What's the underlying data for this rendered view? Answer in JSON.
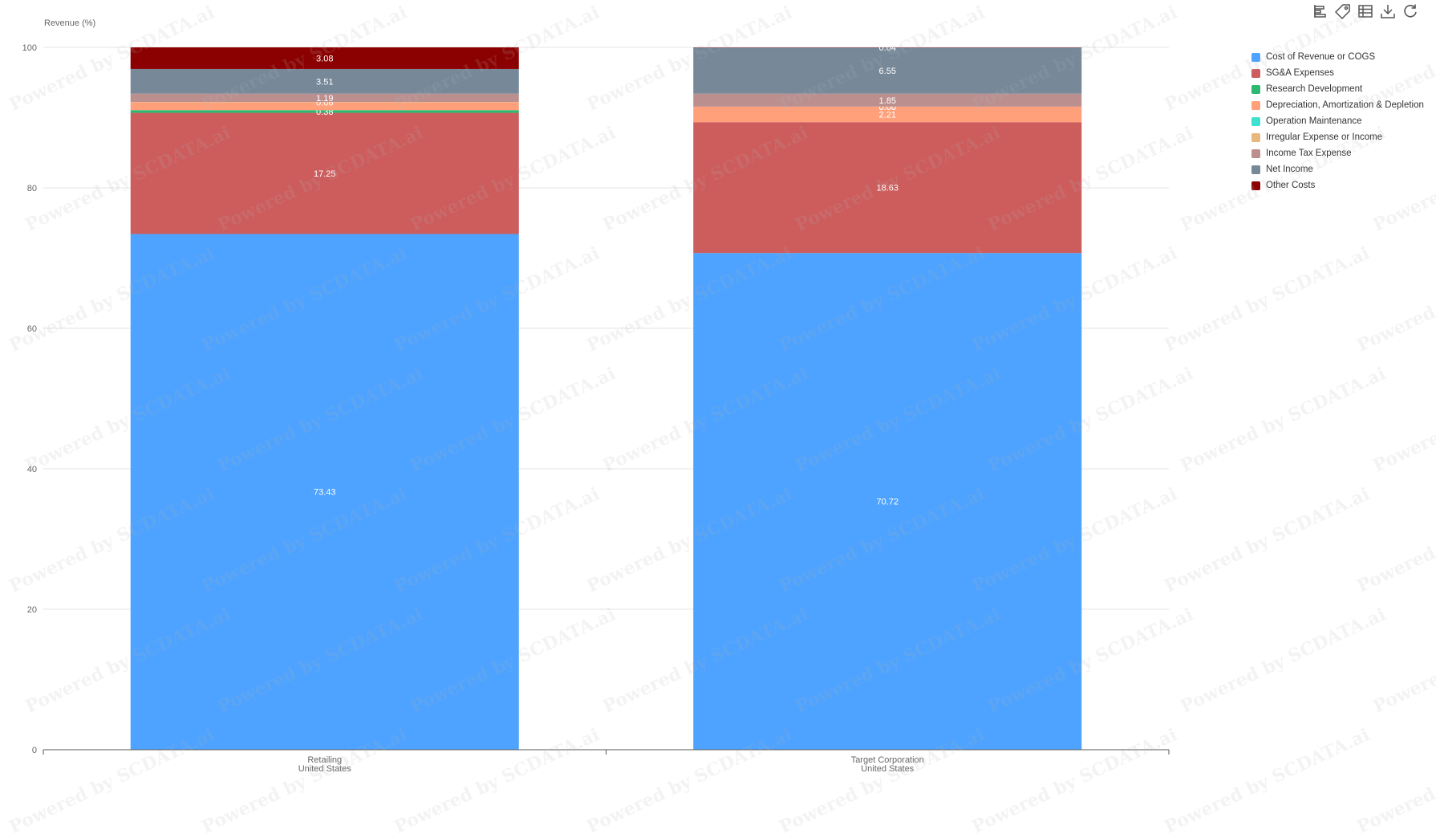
{
  "toolbar": {
    "icons": [
      "bar-chart-icon",
      "tag-icon",
      "table-icon",
      "download-icon",
      "refresh-icon"
    ]
  },
  "watermark_text": "Powered by SCDATA.ai",
  "chart_data": {
    "type": "bar",
    "stacked": true,
    "ylabel": "Revenue (%)",
    "ylim": [
      0,
      100
    ],
    "yticks": [
      0,
      20,
      40,
      60,
      80,
      100
    ],
    "categories": [
      [
        "Retailing",
        "United States"
      ],
      [
        "Target Corporation",
        "United States"
      ]
    ],
    "grid": true,
    "legend_position": "top-right",
    "series": [
      {
        "name": "Cost of Revenue or COGS",
        "color": "#4da3ff",
        "values": [
          73.43,
          70.72
        ],
        "labels": [
          "73.43",
          "70.72"
        ]
      },
      {
        "name": "SG&A Expenses",
        "color": "#cd5c5c",
        "values": [
          17.25,
          18.63
        ],
        "labels": [
          "17.25",
          "18.63"
        ]
      },
      {
        "name": "Research Development",
        "color": "#2eb872",
        "values": [
          0.38,
          0.0
        ],
        "labels": [
          "0.38",
          ""
        ]
      },
      {
        "name": "Depreciation, Amortization & Depletion",
        "color": "#ffa07a",
        "values": [
          1.1,
          2.21
        ],
        "labels": [
          "",
          "2.21"
        ]
      },
      {
        "name": "Operation Maintenance",
        "color": "#40e0d0",
        "values": [
          0.0,
          0.0
        ],
        "labels": [
          "",
          "0.00"
        ]
      },
      {
        "name": "Irregular Expense or Income",
        "color": "#e6b87d",
        "values": [
          0.06,
          0.0
        ],
        "labels": [
          "0.06",
          "0.00"
        ]
      },
      {
        "name": "Income Tax Expense",
        "color": "#bc8f8f",
        "values": [
          1.19,
          1.85
        ],
        "labels": [
          "1.19",
          "1.85"
        ]
      },
      {
        "name": "Net Income",
        "color": "#778899",
        "values": [
          3.51,
          6.55
        ],
        "labels": [
          "3.51",
          "6.55"
        ]
      },
      {
        "name": "Other Costs",
        "color": "#8b0000",
        "values": [
          3.08,
          0.04
        ],
        "labels": [
          "3.08",
          "0.04"
        ]
      }
    ]
  }
}
